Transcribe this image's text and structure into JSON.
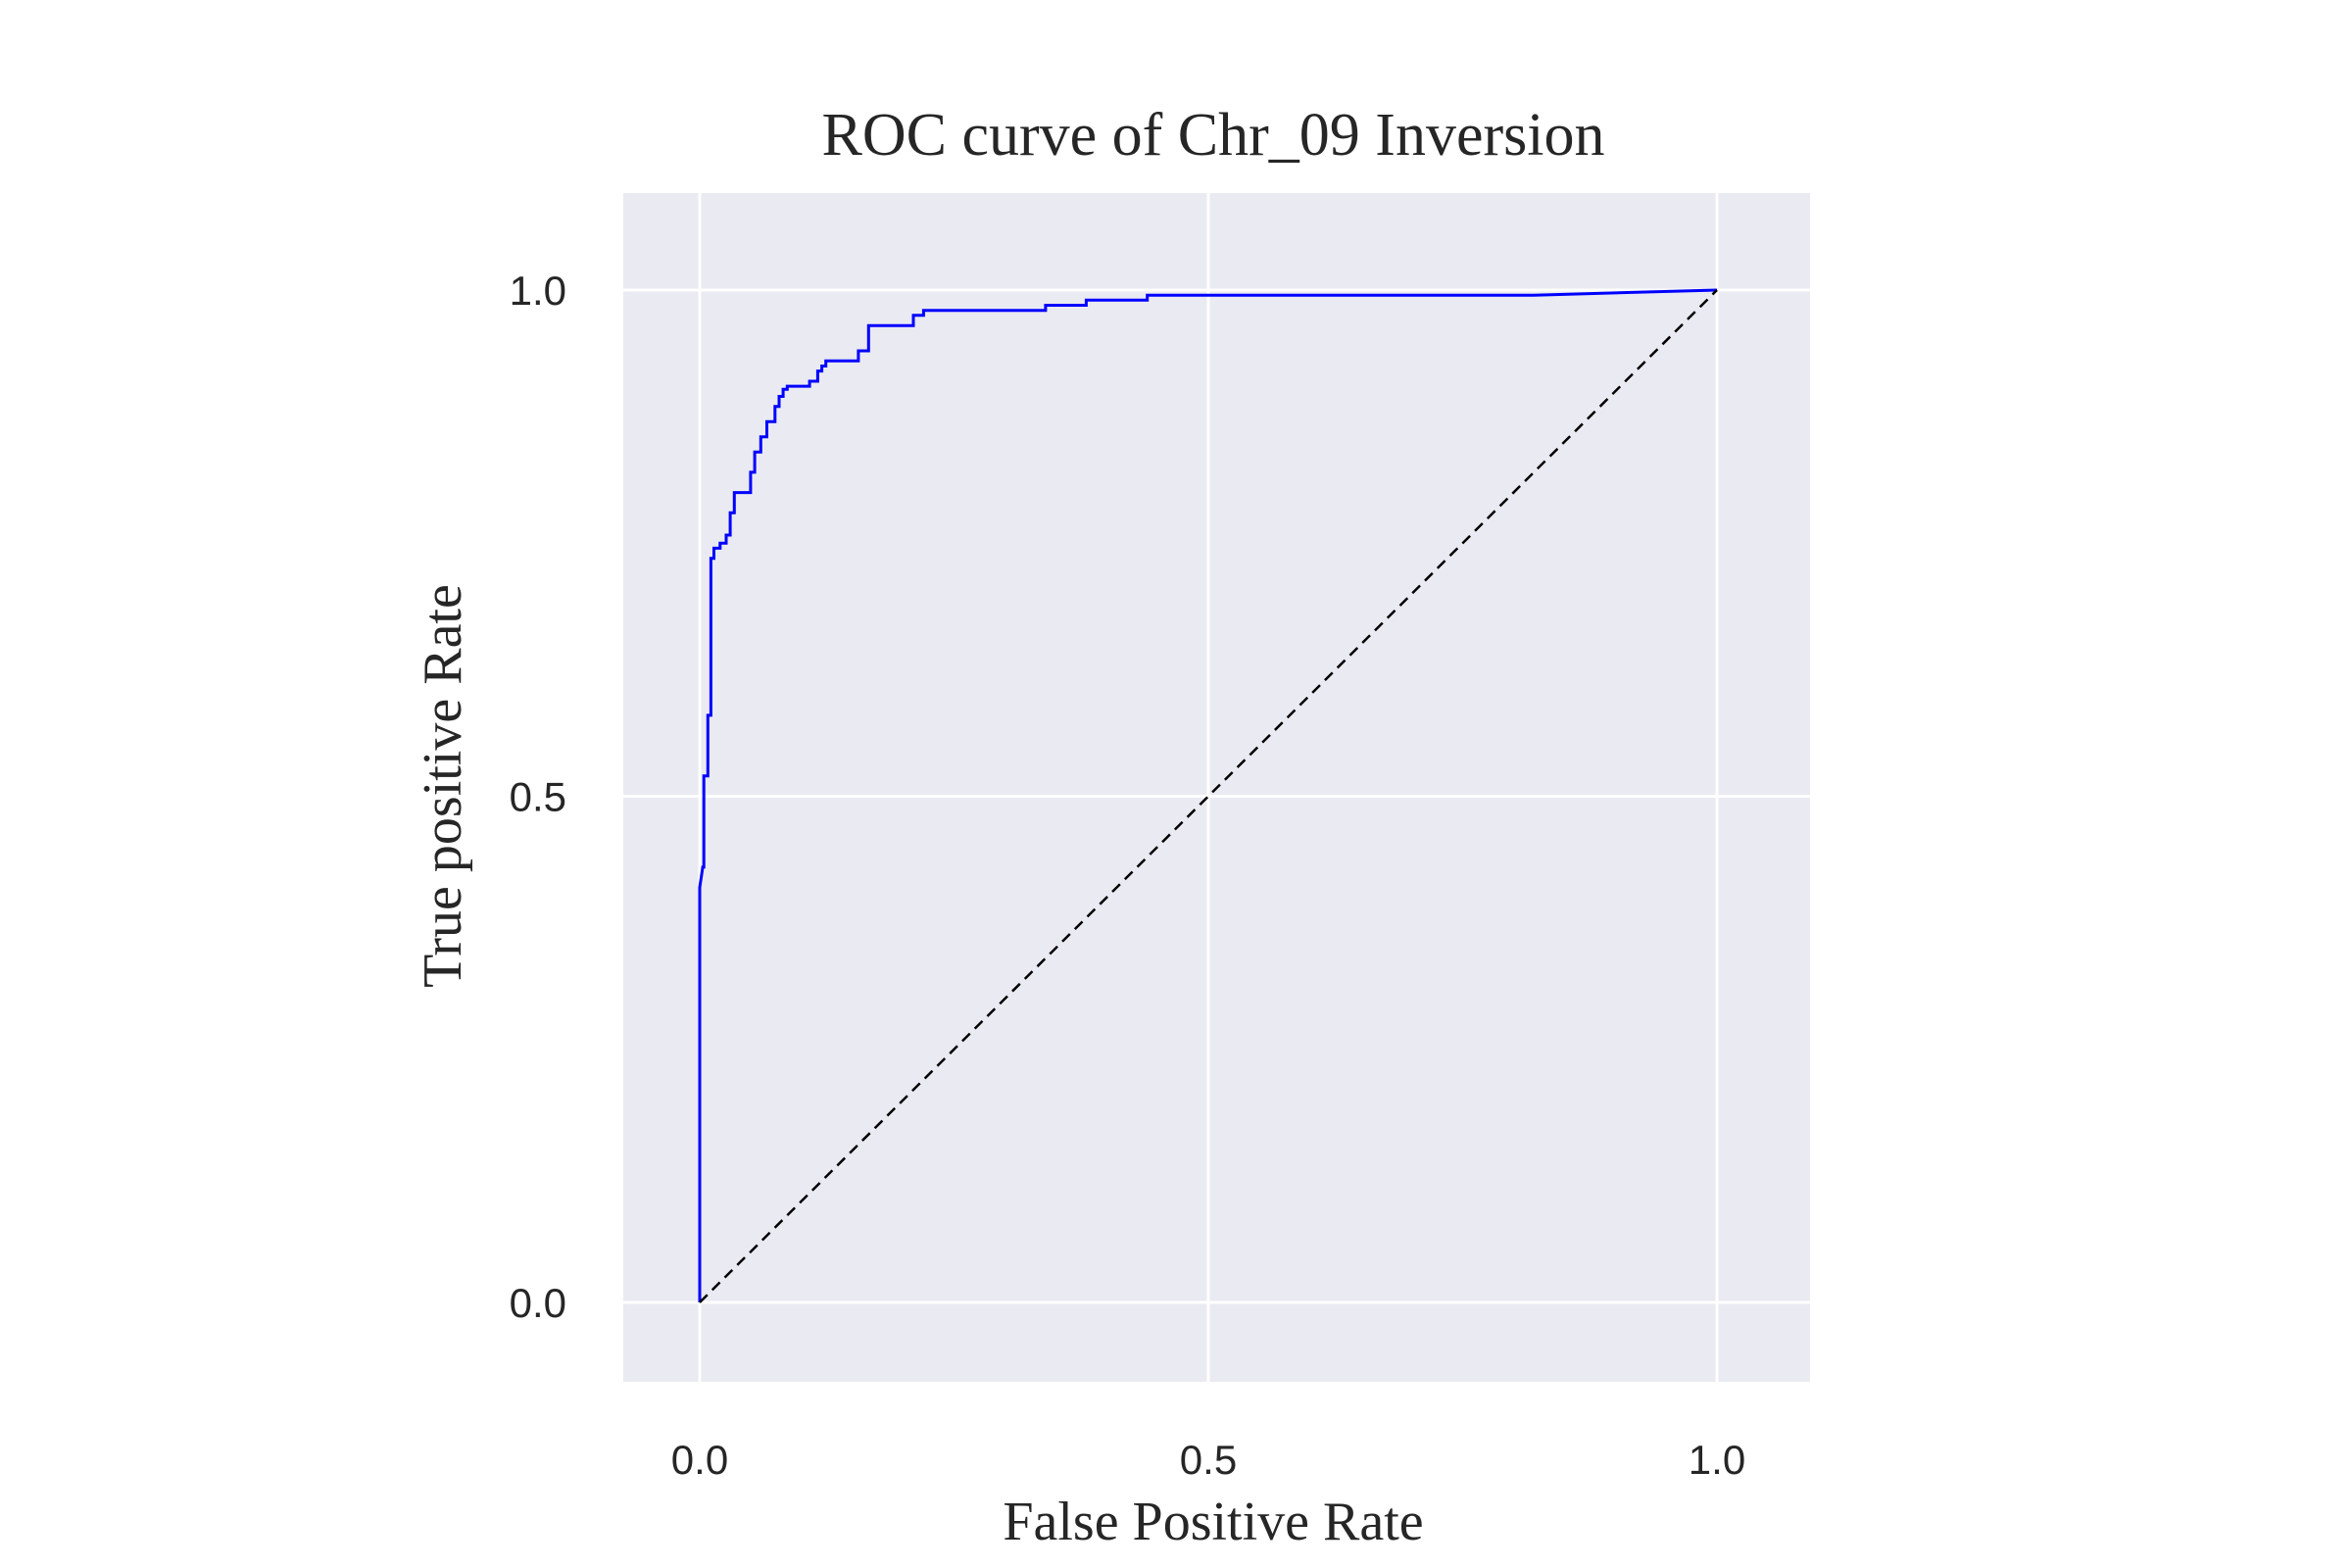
{
  "chart_data": {
    "type": "line",
    "title": "ROC curve of Chr_09 Inversion",
    "xlabel": "False Positive Rate",
    "ylabel": "True positive Rate",
    "xlim": [
      -0.075,
      1.095
    ],
    "ylim": [
      -0.078,
      1.095
    ],
    "xticks": [
      0.0,
      0.5,
      1.0
    ],
    "xtick_labels": [
      "0.0",
      "0.5",
      "1.0"
    ],
    "yticks": [
      0.0,
      0.5,
      1.0
    ],
    "ytick_labels": [
      "0.0",
      "0.5",
      "1.0"
    ],
    "grid": true,
    "background_color": "#eaeaf2",
    "grid_color": "#ffffff",
    "series": [
      {
        "color": "#0000ff",
        "style": "solid",
        "x": [
          0.0,
          0.0,
          0.0,
          0.003,
          0.004,
          0.004,
          0.008,
          0.008,
          0.011,
          0.011,
          0.014,
          0.014,
          0.02,
          0.02,
          0.026,
          0.026,
          0.03,
          0.03,
          0.034,
          0.034,
          0.05,
          0.05,
          0.054,
          0.054,
          0.06,
          0.06,
          0.066,
          0.066,
          0.074,
          0.074,
          0.078,
          0.078,
          0.082,
          0.082,
          0.086,
          0.086,
          0.108,
          0.108,
          0.116,
          0.116,
          0.12,
          0.12,
          0.124,
          0.124,
          0.156,
          0.156,
          0.166,
          0.166,
          0.21,
          0.21,
          0.22,
          0.22,
          0.34,
          0.34,
          0.38,
          0.38,
          0.44,
          0.44,
          0.82,
          1.0
        ],
        "y": [
          0.0,
          0.3,
          0.41,
          0.43,
          0.43,
          0.52,
          0.52,
          0.58,
          0.58,
          0.735,
          0.735,
          0.745,
          0.745,
          0.75,
          0.75,
          0.758,
          0.758,
          0.78,
          0.78,
          0.8,
          0.8,
          0.82,
          0.82,
          0.84,
          0.84,
          0.855,
          0.855,
          0.87,
          0.87,
          0.885,
          0.885,
          0.895,
          0.895,
          0.902,
          0.902,
          0.905,
          0.905,
          0.91,
          0.91,
          0.92,
          0.92,
          0.925,
          0.925,
          0.93,
          0.93,
          0.94,
          0.94,
          0.965,
          0.965,
          0.975,
          0.975,
          0.98,
          0.98,
          0.985,
          0.985,
          0.99,
          0.99,
          0.995,
          0.995,
          1.0
        ]
      },
      {
        "color": "#000000",
        "style": "dashed",
        "x": [
          0.0,
          1.0
        ],
        "y": [
          0.0,
          1.0
        ]
      }
    ]
  }
}
